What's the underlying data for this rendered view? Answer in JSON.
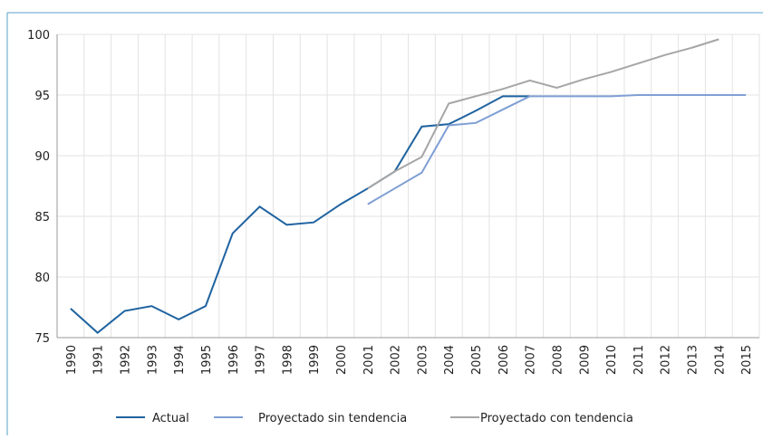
{
  "chart_data": {
    "type": "line",
    "categories": [
      "1990",
      "1991",
      "1992",
      "1993",
      "1994",
      "1995",
      "1996",
      "1997",
      "1998",
      "1999",
      "2000",
      "2001",
      "2002",
      "2003",
      "2004",
      "2005",
      "2006",
      "2007",
      "2008",
      "2009",
      "2010",
      "2011",
      "2012",
      "2013",
      "2014",
      "2015"
    ],
    "series": [
      {
        "name": "Actual",
        "color": "#1f63a0",
        "values": [
          77.4,
          75.4,
          77.2,
          77.6,
          76.5,
          77.6,
          83.6,
          85.8,
          84.3,
          84.5,
          86.0,
          87.3,
          88.7,
          92.4,
          92.6,
          93.7,
          94.9,
          94.9,
          null,
          null,
          null,
          null,
          null,
          null,
          null,
          null
        ]
      },
      {
        "name": "Proyectado sin tendencia",
        "color": "#7f9fd4",
        "values": [
          null,
          null,
          null,
          null,
          null,
          null,
          null,
          null,
          null,
          null,
          null,
          86.0,
          87.3,
          88.6,
          92.5,
          92.7,
          93.8,
          94.9,
          94.9,
          94.9,
          94.9,
          95.0,
          95.0,
          95.0,
          95.0,
          95.0
        ]
      },
      {
        "name": "Proyectado con tendencia",
        "color": "#a6a6a6",
        "values": [
          null,
          null,
          null,
          null,
          null,
          null,
          null,
          null,
          null,
          null,
          null,
          87.3,
          88.7,
          89.9,
          94.3,
          94.9,
          95.5,
          96.2,
          95.6,
          96.3,
          96.9,
          97.6,
          98.3,
          98.9,
          99.6,
          null
        ]
      }
    ],
    "ylim": [
      75,
      100
    ],
    "yticks": [
      75,
      80,
      85,
      90,
      95,
      100
    ],
    "grid": true
  }
}
